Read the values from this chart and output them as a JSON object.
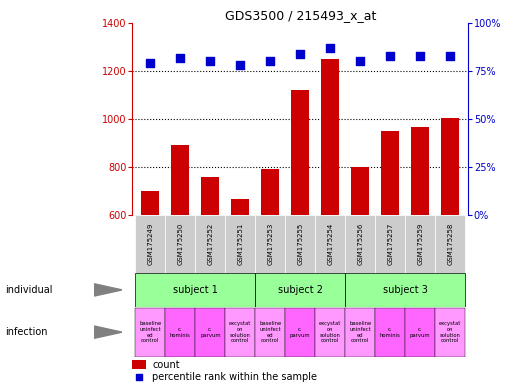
{
  "title": "GDS3500 / 215493_x_at",
  "samples": [
    "GSM175249",
    "GSM175250",
    "GSM175252",
    "GSM175251",
    "GSM175253",
    "GSM175255",
    "GSM175254",
    "GSM175256",
    "GSM175257",
    "GSM175259",
    "GSM175258"
  ],
  "counts": [
    700,
    890,
    760,
    665,
    790,
    1120,
    1250,
    800,
    950,
    965,
    1005
  ],
  "percentile_ranks": [
    79,
    82,
    80,
    78,
    80,
    84,
    87,
    80,
    83,
    83,
    83
  ],
  "ylim_left": [
    600,
    1400
  ],
  "ylim_right": [
    0,
    100
  ],
  "yticks_left": [
    600,
    800,
    1000,
    1200,
    1400
  ],
  "yticks_right": [
    0,
    25,
    50,
    75,
    100
  ],
  "ytick_labels_right": [
    "0%",
    "25%",
    "50%",
    "75%",
    "100%"
  ],
  "bar_color": "#cc0000",
  "dot_color": "#0000cc",
  "subjects": [
    {
      "label": "subject 1",
      "start": 0,
      "end": 4
    },
    {
      "label": "subject 2",
      "start": 4,
      "end": 7
    },
    {
      "label": "subject 3",
      "start": 7,
      "end": 11
    }
  ],
  "infections": [
    {
      "label": "baseline\nuninfect\ned\ncontrol",
      "col": 0,
      "color": "#ff99ff"
    },
    {
      "label": "c.\nhominis",
      "col": 1,
      "color": "#ff66ff"
    },
    {
      "label": "c.\nparvum",
      "col": 2,
      "color": "#ff66ff"
    },
    {
      "label": "excystat\non\nsolution\ncontrol",
      "col": 3,
      "color": "#ff99ff"
    },
    {
      "label": "baseline\nuninfect\ned\ncontrol",
      "col": 4,
      "color": "#ff99ff"
    },
    {
      "label": "c.\nparvum",
      "col": 5,
      "color": "#ff66ff"
    },
    {
      "label": "excystat\non\nsolution\ncontrol",
      "col": 6,
      "color": "#ff99ff"
    },
    {
      "label": "baseline\nuninfect\ned\ncontrol",
      "col": 7,
      "color": "#ff99ff"
    },
    {
      "label": "c.\nhominis",
      "col": 8,
      "color": "#ff66ff"
    },
    {
      "label": "c.\nparvum",
      "col": 9,
      "color": "#ff66ff"
    },
    {
      "label": "excystat\non\nsolution\ncontrol",
      "col": 10,
      "color": "#ff99ff"
    }
  ],
  "subject_color": "#99ff99",
  "sample_bg_color": "#cccccc",
  "legend_count_color": "#cc0000",
  "legend_dot_color": "#0000cc",
  "dot_size": 28,
  "bar_width": 0.6
}
